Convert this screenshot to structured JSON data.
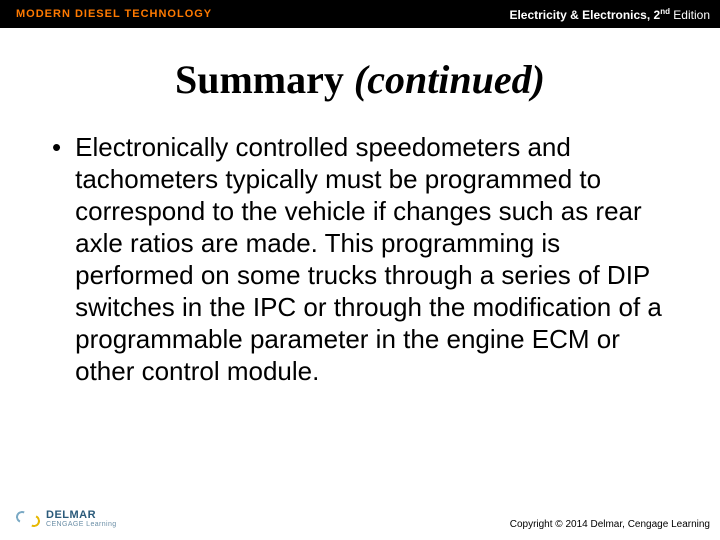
{
  "header": {
    "left_text": "MODERN DIESEL TECHNOLOGY",
    "right_main": "Electricity & Electronics, ",
    "right_edition": "2",
    "right_suffix": " Edition",
    "right_ordinal": "nd"
  },
  "title": {
    "main": "Summary ",
    "italic": "(continued)"
  },
  "bullet": {
    "marker": "•",
    "text": "Electronically controlled speedometers and tachometers typically must be programmed to correspond to the vehicle if changes such as rear axle ratios are made. This programming is performed on some trucks through a series of DIP switches in the IPC or through the modification of a programmable parameter in the engine ECM or other control module."
  },
  "footer": {
    "brand": "DELMAR",
    "sub": "CENGAGE Learning",
    "copyright": "Copyright © 2014 Delmar, Cengage Learning"
  },
  "colors": {
    "header_bg": "#000000",
    "accent_orange": "#ff7a00",
    "text_white": "#ffffff",
    "text_black": "#000000",
    "logo_blue": "#2a5a7a"
  }
}
